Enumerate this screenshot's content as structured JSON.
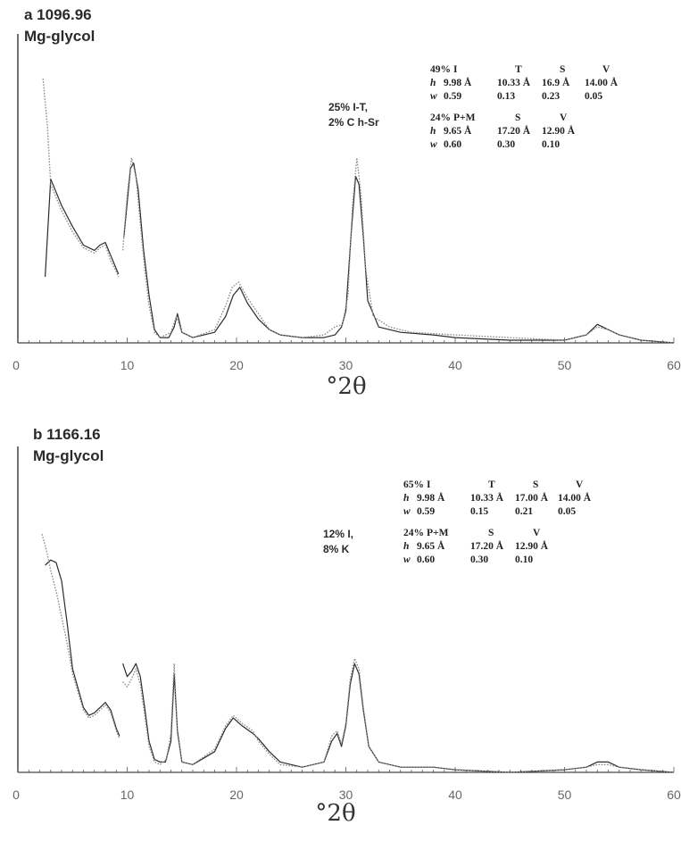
{
  "chart_data": [
    {
      "type": "line",
      "title": "a 1096.96",
      "subtitle": "Mg-glycol",
      "annotation": [
        "25% I-T,",
        "2% C h-Sr"
      ],
      "xlabel": "°2θ",
      "xlim": [
        0,
        60
      ],
      "xticks": [
        "0",
        "10",
        "20",
        "30",
        "40",
        "50",
        "60"
      ],
      "table": {
        "groups": [
          {
            "header": [
              "49%",
              "I",
              "T",
              "S",
              "V"
            ],
            "h": [
              "h",
              "9.98 Å",
              "10.33 Å",
              "16.9 Å",
              "14.00 Å"
            ],
            "w": [
              "w",
              "0.59",
              "0.13",
              "0.23",
              "0.05"
            ]
          },
          {
            "header": [
              "24%",
              "P+M",
              "S",
              "V"
            ],
            "h": [
              "h",
              "9.65 Å",
              "17.20 Å",
              "12.90 Å"
            ],
            "w": [
              "w",
              "0.60",
              "0.30",
              "0.10"
            ]
          }
        ]
      },
      "series": [
        {
          "style": "solid",
          "segments": [
            [
              [
                2.5,
                25
              ],
              [
                3,
                62
              ],
              [
                3.5,
                57
              ],
              [
                4,
                52
              ],
              [
                5,
                44
              ],
              [
                6,
                37
              ],
              [
                7,
                35
              ],
              [
                7.5,
                37
              ],
              [
                8,
                38
              ],
              [
                8.5,
                33
              ],
              [
                9,
                28
              ],
              [
                9.2,
                26
              ]
            ],
            [
              [
                9.7,
                40
              ],
              [
                10,
                53
              ],
              [
                10.3,
                66
              ],
              [
                10.6,
                68
              ],
              [
                11,
                58
              ],
              [
                11.5,
                35
              ],
              [
                12,
                18
              ],
              [
                12.5,
                5
              ],
              [
                13,
                2
              ],
              [
                13.8,
                2
              ],
              [
                14.3,
                6
              ],
              [
                14.6,
                11
              ],
              [
                15,
                4
              ],
              [
                16,
                2
              ],
              [
                18,
                4
              ],
              [
                19,
                10
              ],
              [
                19.7,
                18
              ],
              [
                20.3,
                21
              ],
              [
                21,
                15
              ],
              [
                22,
                9
              ],
              [
                23,
                5
              ],
              [
                24,
                3
              ],
              [
                26,
                2
              ],
              [
                28,
                2
              ],
              [
                29,
                3
              ],
              [
                29.6,
                6
              ],
              [
                30,
                12
              ],
              [
                30.5,
                42
              ],
              [
                30.9,
                63
              ],
              [
                31.2,
                60
              ],
              [
                31.6,
                40
              ],
              [
                32,
                16
              ],
              [
                33,
                6
              ],
              [
                35,
                4
              ],
              [
                38,
                3
              ],
              [
                40,
                2
              ],
              [
                45,
                1
              ],
              [
                50,
                1
              ],
              [
                52,
                3
              ],
              [
                53,
                7
              ],
              [
                54,
                5
              ],
              [
                55,
                3
              ],
              [
                57,
                1
              ],
              [
                60,
                0
              ]
            ]
          ]
        },
        {
          "style": "dotted",
          "segments": [
            [
              [
                2.3,
                100
              ],
              [
                2.7,
                82
              ],
              [
                3,
                60
              ],
              [
                3.5,
                55
              ],
              [
                4,
                50
              ],
              [
                5,
                42
              ],
              [
                6,
                36
              ],
              [
                7,
                34
              ],
              [
                7.5,
                36
              ],
              [
                8,
                37
              ],
              [
                8.5,
                31
              ],
              [
                9,
                27
              ],
              [
                9.2,
                25
              ]
            ],
            [
              [
                9.6,
                35
              ],
              [
                10,
                56
              ],
              [
                10.4,
                70
              ],
              [
                10.8,
                63
              ],
              [
                11.2,
                45
              ],
              [
                11.6,
                28
              ],
              [
                12,
                14
              ],
              [
                12.5,
                4
              ],
              [
                13,
                2
              ],
              [
                14,
                4
              ],
              [
                14.5,
                10
              ],
              [
                15,
                4
              ],
              [
                16,
                2
              ],
              [
                18,
                5
              ],
              [
                19,
                14
              ],
              [
                19.6,
                21
              ],
              [
                20.2,
                23
              ],
              [
                21,
                17
              ],
              [
                22,
                11
              ],
              [
                23,
                5
              ],
              [
                24,
                3
              ],
              [
                26,
                2
              ],
              [
                28,
                3
              ],
              [
                29,
                6
              ],
              [
                29.7,
                7
              ],
              [
                30.2,
                18
              ],
              [
                30.6,
                52
              ],
              [
                31,
                70
              ],
              [
                31.4,
                56
              ],
              [
                31.8,
                28
              ],
              [
                32.5,
                10
              ],
              [
                34,
                6
              ],
              [
                36,
                4
              ],
              [
                40,
                3
              ],
              [
                45,
                2
              ],
              [
                50,
                1
              ],
              [
                52,
                3
              ],
              [
                53,
                6
              ],
              [
                54,
                5
              ],
              [
                55,
                3
              ],
              [
                57,
                1
              ],
              [
                60,
                0
              ]
            ]
          ]
        }
      ]
    },
    {
      "type": "line",
      "title": "b 1166.16",
      "subtitle": "Mg-glycol",
      "annotation": [
        "12% I,",
        "8% K"
      ],
      "xlabel": "°2θ",
      "xlim": [
        0,
        60
      ],
      "xticks": [
        "0",
        "10",
        "20",
        "30",
        "40",
        "50",
        "60"
      ],
      "table": {
        "groups": [
          {
            "header": [
              "65%",
              "I",
              "T",
              "S",
              "V"
            ],
            "h": [
              "h",
              "9.98 Å",
              "10.33 Å",
              "17.00 Å",
              "14.00 Å"
            ],
            "w": [
              "w",
              "0.59",
              "0.15",
              "0.21",
              "0.05"
            ]
          },
          {
            "header": [
              "24%",
              "P+M",
              "S",
              "V"
            ],
            "h": [
              "h",
              "9.65 Å",
              "17.20 Å",
              "12.90 Å"
            ],
            "w": [
              "w",
              "0.60",
              "0.30",
              "0.10"
            ]
          }
        ]
      },
      "series": [
        {
          "style": "solid",
          "segments": [
            [
              [
                2.5,
                80
              ],
              [
                3,
                82
              ],
              [
                3.5,
                81
              ],
              [
                4,
                74
              ],
              [
                4.5,
                58
              ],
              [
                5,
                40
              ],
              [
                6,
                25
              ],
              [
                6.5,
                22
              ],
              [
                7,
                23
              ],
              [
                8,
                27
              ],
              [
                8.5,
                24
              ],
              [
                9,
                17
              ],
              [
                9.3,
                14
              ]
            ],
            [
              [
                9.6,
                42
              ],
              [
                10,
                37
              ],
              [
                10.4,
                39
              ],
              [
                10.8,
                42
              ],
              [
                11.2,
                37
              ],
              [
                11.6,
                25
              ],
              [
                12,
                12
              ],
              [
                12.5,
                5
              ],
              [
                13,
                4
              ],
              [
                13.5,
                4
              ],
              [
                14,
                12
              ],
              [
                14.3,
                38
              ],
              [
                14.6,
                16
              ],
              [
                15,
                4
              ],
              [
                16,
                3
              ],
              [
                18,
                8
              ],
              [
                19,
                17
              ],
              [
                19.7,
                21
              ],
              [
                20.5,
                18
              ],
              [
                21.5,
                15
              ],
              [
                22,
                13
              ],
              [
                23,
                8
              ],
              [
                24,
                4
              ],
              [
                26,
                2
              ],
              [
                28,
                4
              ],
              [
                28.7,
                12
              ],
              [
                29.2,
                15
              ],
              [
                29.6,
                10
              ],
              [
                30,
                18
              ],
              [
                30.4,
                34
              ],
              [
                30.8,
                42
              ],
              [
                31.2,
                38
              ],
              [
                31.6,
                24
              ],
              [
                32.1,
                10
              ],
              [
                33,
                4
              ],
              [
                35,
                2
              ],
              [
                38,
                2
              ],
              [
                40,
                1
              ],
              [
                45,
                0
              ],
              [
                50,
                1
              ],
              [
                52,
                2
              ],
              [
                53,
                4
              ],
              [
                54,
                4
              ],
              [
                55,
                2
              ],
              [
                57,
                1
              ],
              [
                60,
                0
              ]
            ]
          ]
        },
        {
          "style": "dotted",
          "segments": [
            [
              [
                2.2,
                92
              ],
              [
                2.6,
                86
              ],
              [
                3,
                78
              ],
              [
                3.5,
                70
              ],
              [
                4,
                60
              ],
              [
                4.5,
                50
              ],
              [
                5,
                38
              ],
              [
                6,
                24
              ],
              [
                6.5,
                21
              ],
              [
                7,
                22
              ],
              [
                8,
                26
              ],
              [
                8.5,
                23
              ],
              [
                9,
                16
              ],
              [
                9.3,
                13
              ]
            ],
            [
              [
                9.6,
                35
              ],
              [
                10,
                33
              ],
              [
                10.4,
                36
              ],
              [
                10.8,
                40
              ],
              [
                11.2,
                34
              ],
              [
                11.6,
                22
              ],
              [
                12,
                10
              ],
              [
                12.5,
                4
              ],
              [
                13,
                3
              ],
              [
                13.6,
                5
              ],
              [
                14,
                15
              ],
              [
                14.3,
                42
              ],
              [
                14.6,
                15
              ],
              [
                15,
                4
              ],
              [
                16,
                3
              ],
              [
                18,
                9
              ],
              [
                19,
                18
              ],
              [
                19.7,
                22
              ],
              [
                20.5,
                19
              ],
              [
                21.5,
                16
              ],
              [
                22,
                12
              ],
              [
                23,
                7
              ],
              [
                24,
                3
              ],
              [
                26,
                2
              ],
              [
                28,
                4
              ],
              [
                28.7,
                14
              ],
              [
                29.2,
                16
              ],
              [
                29.6,
                11
              ],
              [
                30,
                19
              ],
              [
                30.4,
                36
              ],
              [
                30.8,
                44
              ],
              [
                31.2,
                40
              ],
              [
                31.6,
                25
              ],
              [
                32.1,
                10
              ],
              [
                33,
                4
              ],
              [
                35,
                2
              ],
              [
                38,
                2
              ],
              [
                40,
                1
              ],
              [
                45,
                0
              ],
              [
                50,
                1
              ],
              [
                52,
                2
              ],
              [
                53,
                3
              ],
              [
                54,
                3
              ],
              [
                55,
                2
              ],
              [
                57,
                1
              ],
              [
                60,
                0
              ]
            ]
          ]
        }
      ]
    }
  ]
}
